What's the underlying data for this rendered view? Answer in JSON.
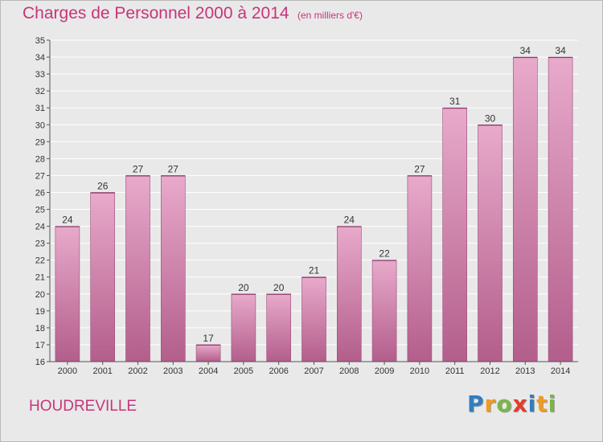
{
  "chart_data": {
    "type": "bar",
    "title": "Charges de Personnel 2000 à 2014",
    "subtitle": "(en milliers d'€)",
    "categories": [
      "2000",
      "2001",
      "2002",
      "2003",
      "2004",
      "2005",
      "2006",
      "2007",
      "2008",
      "2009",
      "2010",
      "2011",
      "2012",
      "2013",
      "2014"
    ],
    "values": [
      24,
      26,
      27,
      27,
      17,
      20,
      20,
      21,
      24,
      22,
      27,
      31,
      30,
      34,
      34
    ],
    "ylim": [
      16,
      35
    ],
    "yticks": [
      16,
      17,
      18,
      19,
      20,
      21,
      22,
      23,
      24,
      25,
      26,
      27,
      28,
      29,
      30,
      31,
      32,
      33,
      34,
      35
    ],
    "grid": true,
    "xlabel": "",
    "ylabel": "",
    "bar_color": "#d47ba6",
    "bar_color_light": "#e8aacb",
    "bar_color_dark": "#b35e8b"
  },
  "footer": {
    "commune": "HOUDREVILLE",
    "brand": [
      "P",
      "r",
      "o",
      "x",
      "i",
      "t",
      "i"
    ],
    "brand_colors": [
      "#2f7fc1",
      "#f29b1d",
      "#7ab648",
      "#e23c2d",
      "#2f7fc1",
      "#f29b1d",
      "#7ab648"
    ]
  }
}
